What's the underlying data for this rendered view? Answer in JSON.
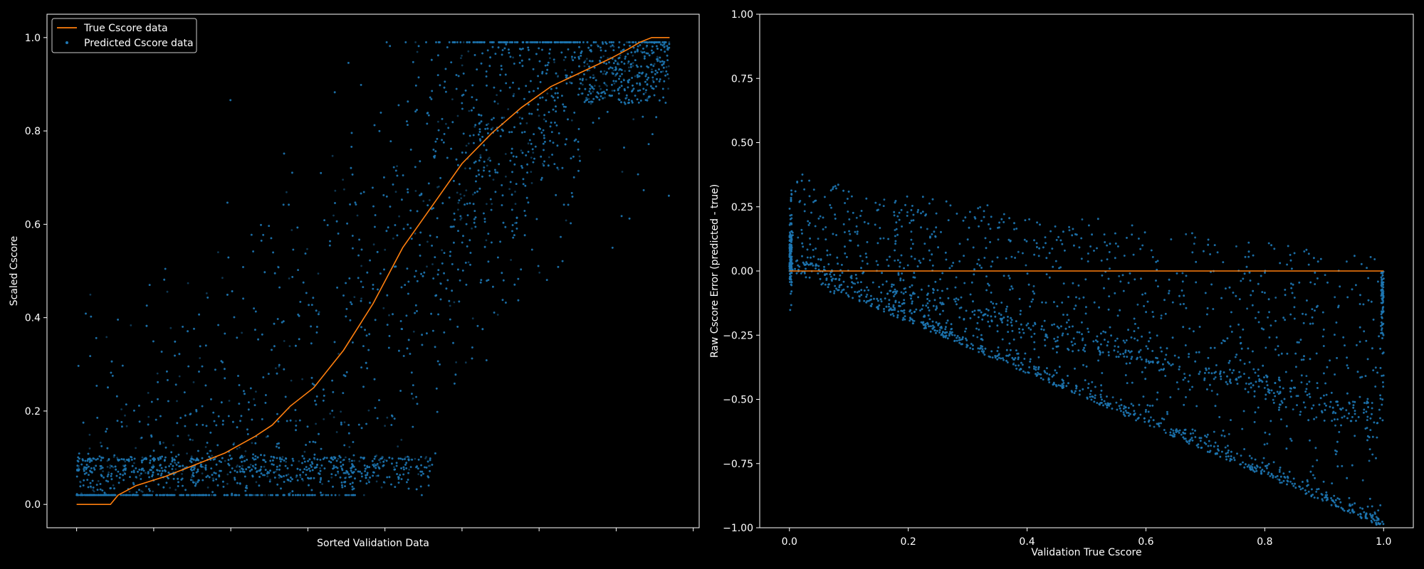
{
  "figure": {
    "background": "#000000",
    "foreground": "#ffffff",
    "point_color": "#1f77b4",
    "line_color": "#ff7f0e"
  },
  "chart_data": [
    {
      "type": "scatter",
      "title": "",
      "xlabel": "Sorted Validation Data",
      "ylabel": "Scaled Cscore",
      "xlim": [
        -0.05,
        1.05
      ],
      "ylim": [
        -0.05,
        1.05
      ],
      "x_ticks": [
        0,
        0.13,
        0.26,
        0.39,
        0.52,
        0.65,
        0.78,
        0.91,
        1.04
      ],
      "x_tick_labels_visible": false,
      "y_ticks": [
        0.0,
        0.2,
        0.4,
        0.6,
        0.8,
        1.0
      ],
      "y_tick_labels": [
        "0.0",
        "0.2",
        "0.4",
        "0.6",
        "0.8",
        "1.0"
      ],
      "grid": false,
      "legend": {
        "position": "top-left",
        "entries": [
          "True Cscore data",
          "Predicted Cscore data"
        ]
      },
      "series": [
        {
          "name": "True Cscore data",
          "kind": "line",
          "color": "#ff7f0e",
          "x": [
            0.0,
            0.057,
            0.07,
            0.1,
            0.15,
            0.2,
            0.25,
            0.3,
            0.33,
            0.36,
            0.4,
            0.45,
            0.5,
            0.55,
            0.6,
            0.65,
            0.7,
            0.75,
            0.8,
            0.85,
            0.9,
            0.93,
            0.95,
            0.97,
            1.0
          ],
          "y": [
            0.0,
            0.0,
            0.02,
            0.04,
            0.06,
            0.085,
            0.11,
            0.145,
            0.17,
            0.21,
            0.25,
            0.33,
            0.43,
            0.55,
            0.64,
            0.73,
            0.795,
            0.85,
            0.895,
            0.925,
            0.955,
            0.975,
            0.99,
            1.0,
            1.0
          ]
        },
        {
          "name": "Predicted Cscore data",
          "kind": "scatter",
          "color": "#1f77b4",
          "description_of_distribution": "dense points with horizontal band near 0.03–0.1 for x<0.55, otherwise scattered around the true curve, converging near 0.85–1.0 at the right",
          "sample_count_rendered": 9000
        }
      ]
    },
    {
      "type": "scatter",
      "title": "",
      "xlabel": "Validation True Cscore",
      "ylabel": "Raw Cscore Error (predicted - true)",
      "xlim": [
        -0.05,
        1.05
      ],
      "ylim": [
        -1.0,
        1.0
      ],
      "x_ticks": [
        0.0,
        0.2,
        0.4,
        0.6,
        0.8,
        1.0
      ],
      "x_tick_labels": [
        "0.0",
        "0.2",
        "0.4",
        "0.6",
        "0.8",
        "1.0"
      ],
      "y_ticks": [
        -1.0,
        -0.75,
        -0.5,
        -0.25,
        0.0,
        0.25,
        0.5,
        0.75,
        1.0
      ],
      "y_tick_labels": [
        "−1.00",
        "−0.75",
        "−0.50",
        "−0.25",
        "0.00",
        "0.25",
        "0.50",
        "0.75",
        "1.00"
      ],
      "grid": false,
      "series": [
        {
          "name": "",
          "kind": "line",
          "color": "#ff7f0e",
          "x": [
            0.0,
            1.0
          ],
          "y": [
            0.0,
            0.0
          ]
        },
        {
          "name": "",
          "kind": "scatter",
          "color": "#1f77b4",
          "description_of_distribution": "errors bounded below by y=-x near x~0, fan of points between upper edge ~0.3-0.35x and lower diagonal, vertical spikes at x=0 and x=1",
          "sample_count_rendered": 9000
        }
      ]
    }
  ]
}
